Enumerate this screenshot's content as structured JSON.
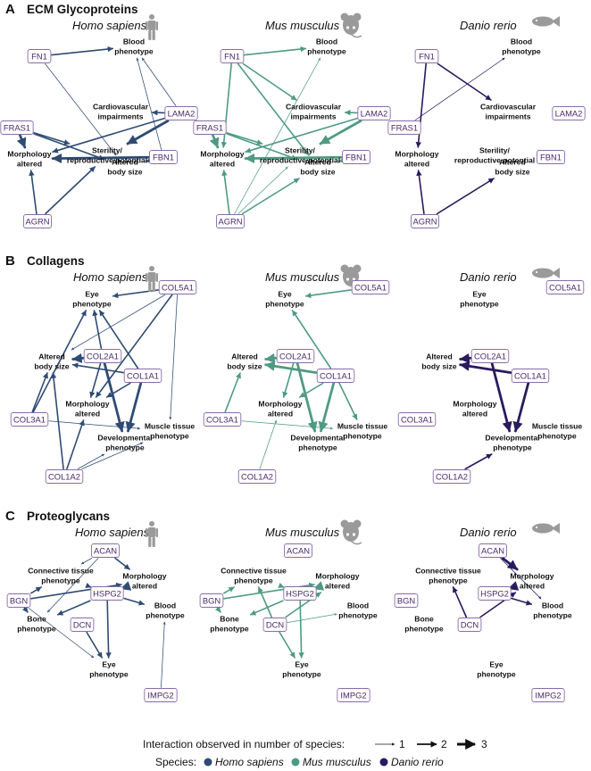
{
  "colors": {
    "homo": "#2f4b73",
    "mus": "#4f9a83",
    "danio": "#2a1a5e",
    "gene_text": "#4a2a6a",
    "gene_border": "#8a6aa8",
    "silhouette": "#9a9a9a"
  },
  "legend": {
    "interaction_label": "Interaction observed in number of species:",
    "counts": [
      "1",
      "2",
      "3"
    ],
    "species_label": "Species:",
    "species": [
      "Homo sapiens",
      "Mus musculus",
      "Danio rerio"
    ]
  },
  "sections": [
    {
      "letter": "A",
      "title": "ECM Glycoproteins",
      "species_titles": [
        "Homo sapiens",
        "Mus musculus",
        "Danio rerio"
      ],
      "icons": [
        "human-icon",
        "mouse-icon",
        "fish-icon"
      ],
      "nodes": [
        {
          "id": "FN1",
          "label": "FN1",
          "type": "gene"
        },
        {
          "id": "FRAS1",
          "label": "FRAS1",
          "type": "gene"
        },
        {
          "id": "LAMA2",
          "label": "LAMA2",
          "type": "gene"
        },
        {
          "id": "FBN1",
          "label": "FBN1",
          "type": "gene"
        },
        {
          "id": "AGRN",
          "label": "AGRN",
          "type": "gene"
        },
        {
          "id": "blood",
          "lines": [
            "Blood",
            "phenotype"
          ],
          "type": "pheno"
        },
        {
          "id": "cardio",
          "lines": [
            "Cardiovascular",
            "impairments"
          ],
          "type": "pheno"
        },
        {
          "id": "steril",
          "lines": [
            "Sterility/",
            "reproductive potential"
          ],
          "type": "pheno"
        },
        {
          "id": "morph",
          "lines": [
            "Morphology",
            "altered"
          ],
          "type": "pheno"
        },
        {
          "id": "body",
          "lines": [
            "Altered",
            "body size"
          ],
          "type": "pheno"
        }
      ],
      "edges": {
        "homo": [
          [
            "FN1",
            "blood",
            2
          ],
          [
            "FN1",
            "body",
            1
          ],
          [
            "LAMA2",
            "cardio",
            2
          ],
          [
            "LAMA2",
            "steril",
            3
          ],
          [
            "LAMA2",
            "blood",
            1
          ],
          [
            "LAMA2",
            "morph",
            2
          ],
          [
            "FRAS1",
            "morph",
            3
          ],
          [
            "FRAS1",
            "steril",
            2
          ],
          [
            "FRAS1",
            "body",
            2
          ],
          [
            "FBN1",
            "morph",
            3
          ],
          [
            "FBN1",
            "blood",
            1
          ],
          [
            "FBN1",
            "body",
            2
          ],
          [
            "AGRN",
            "steril",
            2
          ],
          [
            "AGRN",
            "morph",
            2
          ]
        ],
        "mus": [
          [
            "FN1",
            "blood",
            2
          ],
          [
            "FN1",
            "cardio",
            2
          ],
          [
            "FN1",
            "morph",
            2
          ],
          [
            "FN1",
            "body",
            2
          ],
          [
            "LAMA2",
            "cardio",
            2
          ],
          [
            "LAMA2",
            "steril",
            3
          ],
          [
            "LAMA2",
            "morph",
            2
          ],
          [
            "FRAS1",
            "morph",
            3
          ],
          [
            "FRAS1",
            "steril",
            2
          ],
          [
            "FRAS1",
            "body",
            2
          ],
          [
            "FBN1",
            "morph",
            3
          ],
          [
            "FBN1",
            "body",
            2
          ],
          [
            "AGRN",
            "body",
            2
          ],
          [
            "AGRN",
            "steril",
            1
          ],
          [
            "AGRN",
            "morph",
            2
          ],
          [
            "AGRN",
            "blood",
            1
          ]
        ],
        "danio": [
          [
            "FN1",
            "cardio",
            2
          ],
          [
            "FN1",
            "morph",
            2
          ],
          [
            "FRAS1",
            "blood",
            1
          ],
          [
            "AGRN",
            "morph",
            2
          ],
          [
            "AGRN",
            "body",
            2
          ]
        ]
      }
    },
    {
      "letter": "B",
      "title": "Collagens",
      "species_titles": [
        "Homo sapiens",
        "Mus musculus",
        "Danio rerio"
      ],
      "icons": [
        "human-icon",
        "mouse-icon",
        "fish-icon"
      ],
      "nodes": [
        {
          "id": "COL5A1",
          "label": "COL5A1",
          "type": "gene"
        },
        {
          "id": "COL2A1",
          "label": "COL2A1",
          "type": "gene"
        },
        {
          "id": "COL1A1",
          "label": "COL1A1",
          "type": "gene"
        },
        {
          "id": "COL3A1",
          "label": "COL3A1",
          "type": "gene"
        },
        {
          "id": "COL1A2",
          "label": "COL1A2",
          "type": "gene"
        },
        {
          "id": "eye",
          "lines": [
            "Eye",
            "phenotype"
          ],
          "type": "pheno"
        },
        {
          "id": "body",
          "lines": [
            "Altered",
            "body size"
          ],
          "type": "pheno"
        },
        {
          "id": "morph",
          "lines": [
            "Morphology",
            "altered"
          ],
          "type": "pheno"
        },
        {
          "id": "muscle",
          "lines": [
            "Muscle tissue",
            "phenotype"
          ],
          "type": "pheno"
        },
        {
          "id": "devel",
          "lines": [
            "Developmental",
            "phenotype"
          ],
          "type": "pheno"
        }
      ],
      "edges": {
        "homo": [
          [
            "COL5A1",
            "eye",
            2
          ],
          [
            "COL5A1",
            "body",
            1
          ],
          [
            "COL5A1",
            "morph",
            2
          ],
          [
            "COL5A1",
            "muscle",
            1
          ],
          [
            "COL2A1",
            "eye",
            2
          ],
          [
            "COL2A1",
            "body",
            3
          ],
          [
            "COL2A1",
            "morph",
            2
          ],
          [
            "COL2A1",
            "devel",
            3
          ],
          [
            "COL1A1",
            "body",
            2
          ],
          [
            "COL1A1",
            "morph",
            2
          ],
          [
            "COL1A1",
            "devel",
            3
          ],
          [
            "COL1A1",
            "eye",
            2
          ],
          [
            "COL3A1",
            "body",
            2
          ],
          [
            "COL3A1",
            "eye",
            2
          ],
          [
            "COL3A1",
            "muscle",
            1
          ],
          [
            "COL1A2",
            "body",
            2
          ],
          [
            "COL1A2",
            "devel",
            1
          ],
          [
            "COL1A2",
            "muscle",
            1
          ],
          [
            "COL1A2",
            "morph",
            2
          ]
        ],
        "mus": [
          [
            "COL5A1",
            "eye",
            2
          ],
          [
            "COL2A1",
            "body",
            3
          ],
          [
            "COL2A1",
            "morph",
            2
          ],
          [
            "COL2A1",
            "devel",
            3
          ],
          [
            "COL1A1",
            "body",
            3
          ],
          [
            "COL1A1",
            "morph",
            2
          ],
          [
            "COL1A1",
            "devel",
            3
          ],
          [
            "COL1A1",
            "muscle",
            2
          ],
          [
            "COL1A1",
            "eye",
            2
          ],
          [
            "COL3A1",
            "body",
            2
          ],
          [
            "COL3A1",
            "muscle",
            1
          ],
          [
            "COL1A2",
            "morph",
            1
          ]
        ],
        "danio": [
          [
            "COL2A1",
            "body",
            3
          ],
          [
            "COL2A1",
            "devel",
            3
          ],
          [
            "COL1A1",
            "body",
            3
          ],
          [
            "COL1A1",
            "devel",
            3
          ],
          [
            "COL1A2",
            "devel",
            2
          ]
        ]
      }
    },
    {
      "letter": "C",
      "title": "Proteoglycans",
      "species_titles": [
        "Homo sapiens",
        "Mus musculus",
        "Danio rerio"
      ],
      "icons": [
        "human-icon",
        "mouse-icon",
        "fish-icon"
      ],
      "nodes": [
        {
          "id": "ACAN",
          "label": "ACAN",
          "type": "gene"
        },
        {
          "id": "HSPG2",
          "label": "HSPG2",
          "type": "gene"
        },
        {
          "id": "BGN",
          "label": "BGN",
          "type": "gene"
        },
        {
          "id": "DCN",
          "label": "DCN",
          "type": "gene"
        },
        {
          "id": "IMPG2",
          "label": "IMPG2",
          "type": "gene"
        },
        {
          "id": "conn",
          "lines": [
            "Connective tissue",
            "phenotype"
          ],
          "type": "pheno"
        },
        {
          "id": "morph",
          "lines": [
            "Morphology",
            "altered"
          ],
          "type": "pheno"
        },
        {
          "id": "blood",
          "lines": [
            "Blood",
            "phenotype"
          ],
          "type": "pheno"
        },
        {
          "id": "bone",
          "lines": [
            "Bone",
            "phenotype"
          ],
          "type": "pheno"
        },
        {
          "id": "eye",
          "lines": [
            "Eye",
            "phenotype"
          ],
          "type": "pheno"
        }
      ],
      "edges": {
        "homo": [
          [
            "ACAN",
            "morph",
            2
          ],
          [
            "ACAN",
            "conn",
            1
          ],
          [
            "ACAN",
            "bone",
            1
          ],
          [
            "HSPG2",
            "morph",
            3
          ],
          [
            "HSPG2",
            "conn",
            2
          ],
          [
            "HSPG2",
            "blood",
            2
          ],
          [
            "HSPG2",
            "bone",
            2
          ],
          [
            "HSPG2",
            "eye",
            2
          ],
          [
            "BGN",
            "conn",
            2
          ],
          [
            "BGN",
            "bone",
            2
          ],
          [
            "BGN",
            "morph",
            2
          ],
          [
            "BGN",
            "eye",
            1
          ],
          [
            "DCN",
            "eye",
            2
          ],
          [
            "IMPG2",
            "blood",
            1
          ]
        ],
        "mus": [
          [
            "HSPG2",
            "morph",
            3
          ],
          [
            "HSPG2",
            "conn",
            2
          ],
          [
            "HSPG2",
            "bone",
            2
          ],
          [
            "HSPG2",
            "eye",
            2
          ],
          [
            "BGN",
            "conn",
            2
          ],
          [
            "BGN",
            "bone",
            2
          ],
          [
            "BGN",
            "morph",
            2
          ],
          [
            "DCN",
            "eye",
            2
          ],
          [
            "DCN",
            "conn",
            2
          ],
          [
            "DCN",
            "morph",
            2
          ],
          [
            "DCN",
            "blood",
            1
          ]
        ],
        "danio": [
          [
            "ACAN",
            "morph",
            3
          ],
          [
            "ACAN",
            "blood",
            1
          ],
          [
            "HSPG2",
            "morph",
            3
          ],
          [
            "HSPG2",
            "blood",
            2
          ],
          [
            "DCN",
            "conn",
            2
          ],
          [
            "DCN",
            "morph",
            2
          ]
        ]
      }
    }
  ]
}
